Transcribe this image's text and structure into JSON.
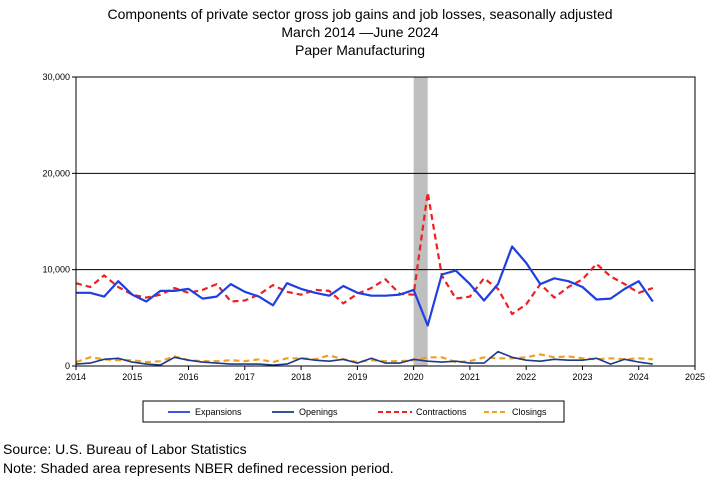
{
  "colors": {
    "expansions": "#1f3fe0",
    "openings": "#1c3a8c",
    "contractions": "#ee2020",
    "closings": "#f0a020",
    "recession": "#bfbfbf"
  },
  "chart_data": {
    "type": "line",
    "title": "Components of private sector gross job gains and job losses, seasonally adjusted",
    "subtitle_lines": [
      "March 2014  —June 2024",
      "Paper Manufacturing"
    ],
    "xlabel": "",
    "ylabel": "",
    "xlim": [
      2014,
      2025
    ],
    "ylim": [
      0,
      30000
    ],
    "x_ticks": [
      "2014",
      "2015",
      "2016",
      "2017",
      "2018",
      "2019",
      "2020",
      "2021",
      "2022",
      "2023",
      "2024",
      "2025"
    ],
    "y_ticks": [
      "0",
      "10,000",
      "20,000",
      "30,000"
    ],
    "y_tick_values": [
      0,
      10000,
      20000,
      30000
    ],
    "gridlines_y": [
      10000,
      20000,
      30000
    ],
    "grid": "horizontal",
    "legend_position": "bottom",
    "recession_shading": {
      "start": 2020.0,
      "end": 2020.25
    },
    "x": [
      2014.0,
      2014.25,
      2014.5,
      2014.75,
      2015.0,
      2015.25,
      2015.5,
      2015.75,
      2016.0,
      2016.25,
      2016.5,
      2016.75,
      2017.0,
      2017.25,
      2017.5,
      2017.75,
      2018.0,
      2018.25,
      2018.5,
      2018.75,
      2019.0,
      2019.25,
      2019.5,
      2019.75,
      2020.0,
      2020.25,
      2020.5,
      2020.75,
      2021.0,
      2021.25,
      2021.5,
      2021.75,
      2022.0,
      2022.25,
      2022.5,
      2022.75,
      2023.0,
      2023.25,
      2023.5,
      2023.75,
      2024.0,
      2024.25
    ],
    "series": [
      {
        "name": "Expansions",
        "color_key": "expansions",
        "style": "solid",
        "width": 2.2,
        "values": [
          7600,
          7600,
          7200,
          8800,
          7400,
          6700,
          7800,
          7800,
          8000,
          7000,
          7200,
          8500,
          7700,
          7200,
          6300,
          8600,
          8000,
          7600,
          7300,
          8300,
          7600,
          7300,
          7300,
          7400,
          7900,
          4200,
          9500,
          9900,
          8500,
          6800,
          8500,
          12400,
          10700,
          8500,
          9100,
          8800,
          8200,
          6900,
          7000,
          8000,
          8800,
          6700
        ]
      },
      {
        "name": "Openings",
        "color_key": "openings",
        "style": "solid",
        "width": 1.6,
        "values": [
          200,
          300,
          700,
          800,
          400,
          200,
          100,
          900,
          600,
          400,
          300,
          200,
          200,
          200,
          100,
          200,
          800,
          600,
          500,
          700,
          300,
          800,
          300,
          300,
          700,
          500,
          400,
          500,
          300,
          300,
          1500,
          900,
          600,
          500,
          700,
          600,
          600,
          800,
          200,
          700,
          400,
          200
        ]
      },
      {
        "name": "Contractions",
        "color_key": "contractions",
        "style": "dashed",
        "width": 2.2,
        "values": [
          8600,
          8200,
          9400,
          8200,
          7400,
          7100,
          7400,
          8100,
          7600,
          7900,
          8500,
          6700,
          6800,
          7400,
          8400,
          7700,
          7400,
          7900,
          7800,
          6500,
          7500,
          8100,
          9000,
          7500,
          7400,
          18000,
          9400,
          7000,
          7200,
          9100,
          8000,
          5400,
          6400,
          8500,
          7100,
          8200,
          9000,
          10600,
          9300,
          8500,
          7600,
          8100
        ]
      },
      {
        "name": "Closings",
        "color_key": "closings",
        "style": "dashed",
        "width": 2.2,
        "values": [
          400,
          900,
          700,
          600,
          600,
          400,
          500,
          1000,
          600,
          500,
          500,
          600,
          500,
          700,
          400,
          800,
          800,
          700,
          1100,
          700,
          400,
          600,
          500,
          500,
          600,
          900,
          900,
          400,
          500,
          900,
          800,
          800,
          900,
          1200,
          900,
          1000,
          800,
          700,
          800,
          700,
          800,
          700
        ]
      }
    ]
  },
  "legend": {
    "items": [
      {
        "label": "Expansions",
        "color_key": "expansions",
        "style": "solid"
      },
      {
        "label": "Openings",
        "color_key": "openings",
        "style": "solid"
      },
      {
        "label": "Contractions",
        "color_key": "contractions",
        "style": "dashed"
      },
      {
        "label": "Closings",
        "color_key": "closings",
        "style": "dashed"
      }
    ]
  },
  "footer": {
    "source": "Source: U.S. Bureau of Labor Statistics",
    "note": "Note: Shaded area represents NBER defined recession period."
  }
}
